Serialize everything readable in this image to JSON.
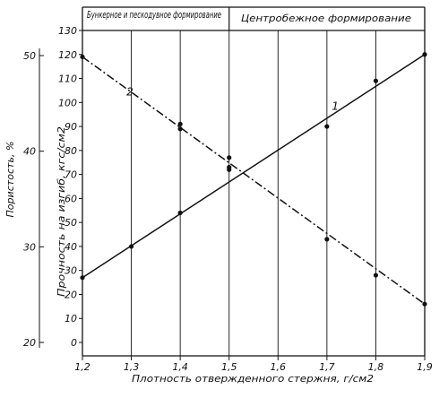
{
  "chart_data": {
    "type": "line",
    "region_labels": [
      "Бункерное и пескодувное формирование",
      "Центробежное формирование"
    ],
    "region_boundary_x": 1.5,
    "xlabel": "Плотность отвержденного стержня, г/см2",
    "ylabel_right": "Прочность на изгиб, кгс/см2",
    "ylabel_left": "Пористость, %",
    "x_ticks": [
      "1,2",
      "1,3",
      "1,4",
      "1,5",
      "1,6",
      "1,7",
      "1,8",
      "1,9"
    ],
    "x_tick_values": [
      1.2,
      1.3,
      1.4,
      1.5,
      1.6,
      1.7,
      1.8,
      1.9
    ],
    "xlim": [
      1.2,
      1.9
    ],
    "y_ticks": [
      "0",
      "10",
      "20",
      "30",
      "40",
      "50",
      "60",
      "70",
      "80",
      "90",
      "100",
      "110",
      "120",
      "130"
    ],
    "y_tick_values": [
      0,
      10,
      20,
      30,
      40,
      50,
      60,
      70,
      80,
      90,
      100,
      110,
      120,
      130
    ],
    "ylim": [
      0,
      130
    ],
    "y2_ticks": [
      "20",
      "30",
      "40",
      "50"
    ],
    "y2_tick_values": [
      20,
      30,
      40,
      50
    ],
    "series": [
      {
        "name": "1",
        "line_style": "solid",
        "points": [
          [
            1.2,
            27
          ],
          [
            1.3,
            40
          ],
          [
            1.4,
            54
          ],
          [
            1.5,
            77
          ],
          [
            1.5,
            72
          ],
          [
            1.7,
            90
          ],
          [
            1.8,
            109
          ],
          [
            1.9,
            120
          ]
        ]
      },
      {
        "name": "2",
        "line_style": "dash-dot",
        "points": [
          [
            1.2,
            119
          ],
          [
            1.4,
            91
          ],
          [
            1.4,
            89
          ],
          [
            1.5,
            73
          ],
          [
            1.7,
            43
          ],
          [
            1.8,
            28
          ],
          [
            1.9,
            16
          ]
        ]
      }
    ]
  }
}
